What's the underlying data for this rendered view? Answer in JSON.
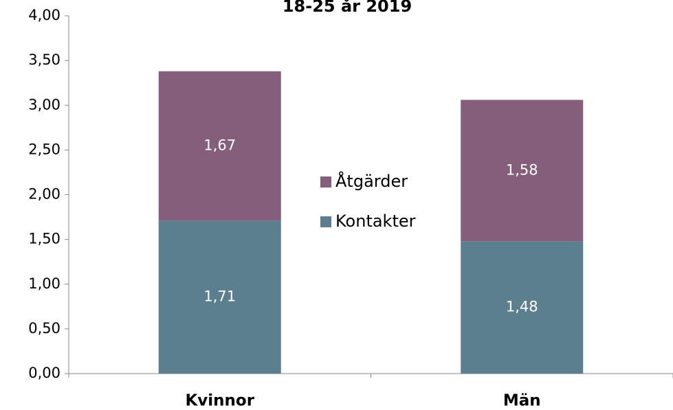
{
  "chart_data": {
    "type": "stacked_bar",
    "title": "18-25 år 2019",
    "categories": [
      "Kvinnor",
      "Män"
    ],
    "series": [
      {
        "name": "Kontakter",
        "color": "#5b7f8f",
        "values": [
          1.71,
          1.48
        ],
        "value_labels": [
          "1,71",
          "1,48"
        ]
      },
      {
        "name": "Åtgärder",
        "color": "#855e7b",
        "values": [
          1.67,
          1.58
        ],
        "value_labels": [
          "1,67",
          "1,58"
        ]
      }
    ],
    "ylim": [
      0,
      4
    ],
    "yticks": [
      {
        "value": 0,
        "label": "0,00"
      },
      {
        "value": 0.5,
        "label": "0,50"
      },
      {
        "value": 1,
        "label": "1,00"
      },
      {
        "value": 1.5,
        "label": "1,50"
      },
      {
        "value": 2,
        "label": "2,00"
      },
      {
        "value": 2.5,
        "label": "2,50"
      },
      {
        "value": 3,
        "label": "3,00"
      },
      {
        "value": 3.5,
        "label": "3,50"
      },
      {
        "value": 4,
        "label": "4,00"
      }
    ],
    "grid": false
  }
}
